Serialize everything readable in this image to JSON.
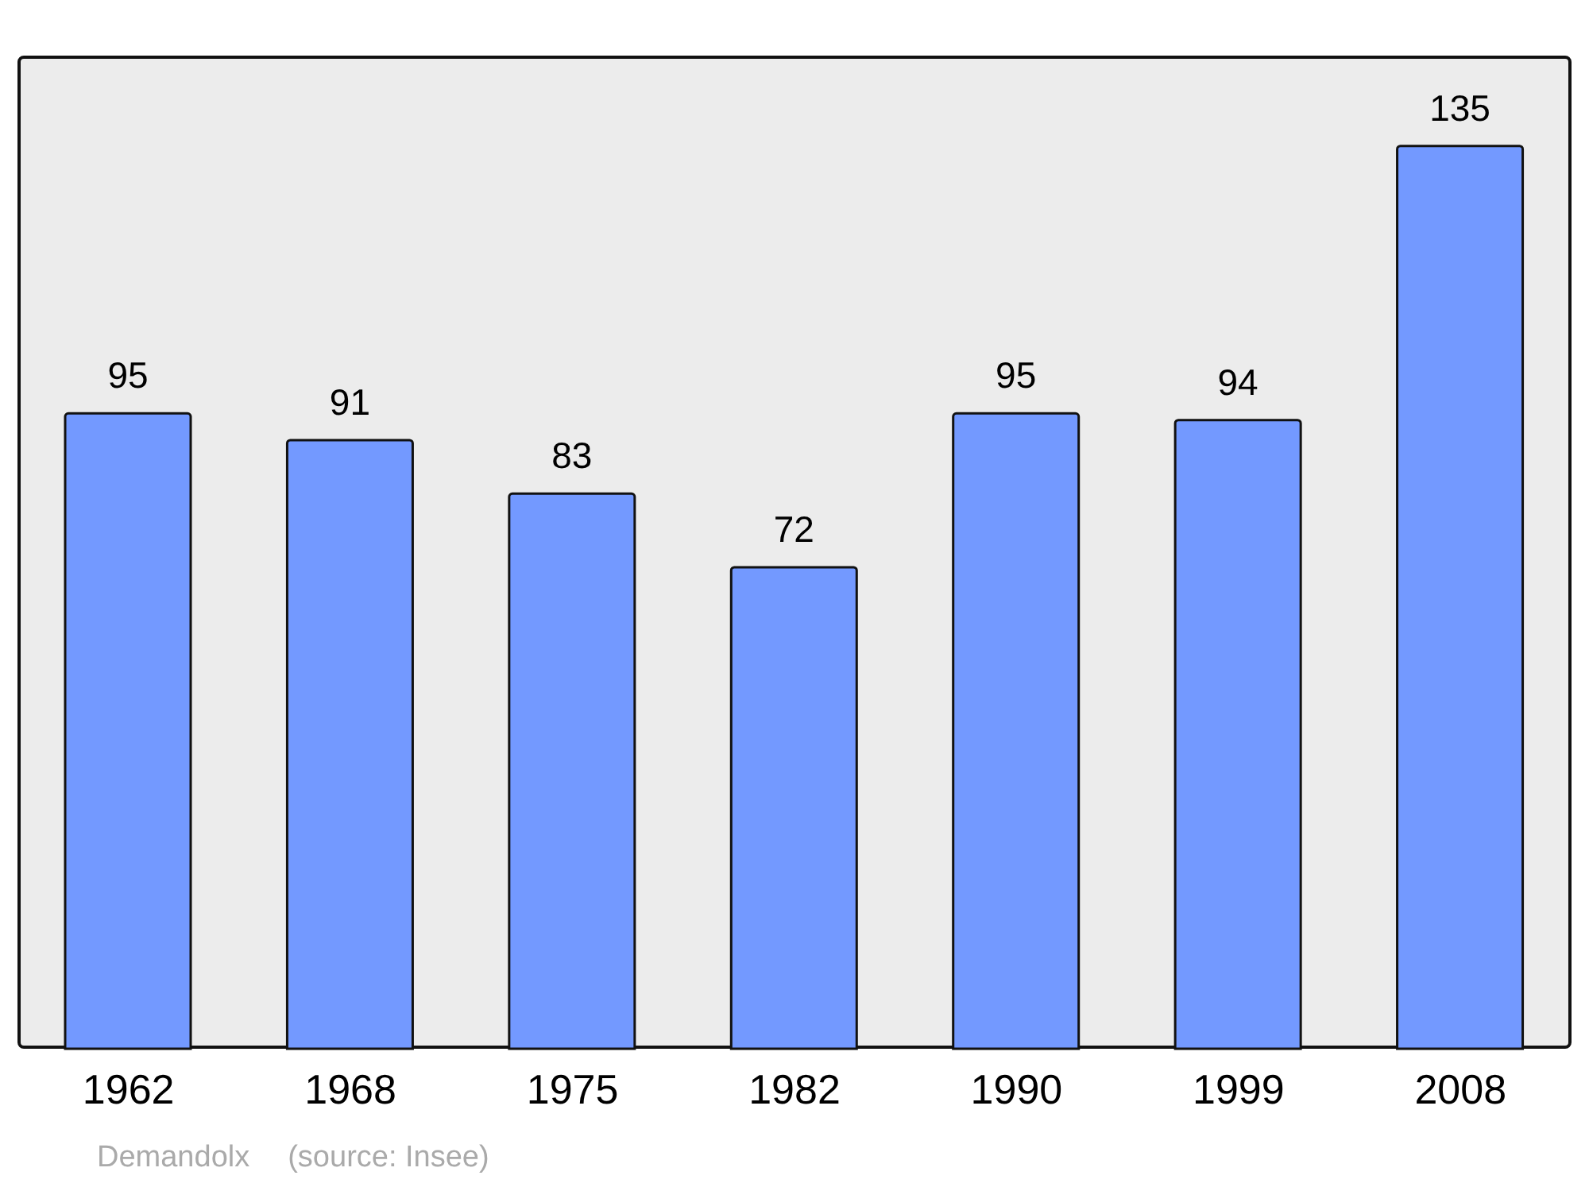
{
  "chart_data": {
    "type": "bar",
    "categories": [
      "1962",
      "1968",
      "1975",
      "1982",
      "1990",
      "1999",
      "2008"
    ],
    "values": [
      95,
      91,
      83,
      72,
      95,
      94,
      135
    ],
    "color": "#7399ff",
    "data_labels": true,
    "annotations": [
      "Demandolx",
      "(source: Insee)"
    ]
  }
}
